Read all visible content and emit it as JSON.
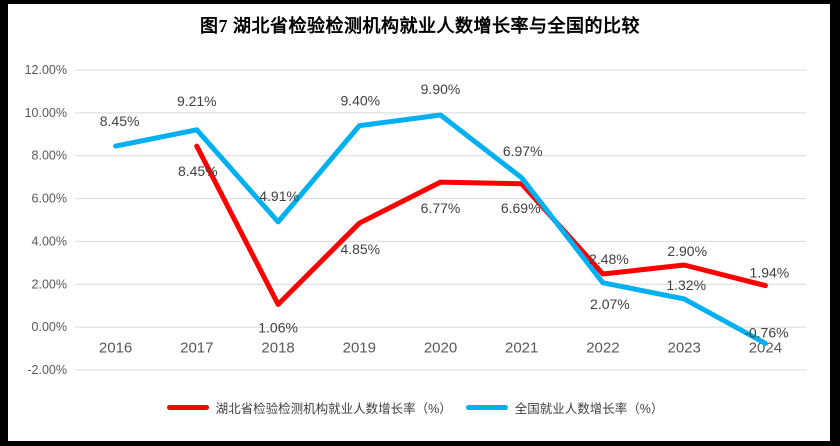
{
  "colors": {
    "frame": "#000000",
    "background": "#FFFFFF",
    "gridline": "#D9D9D9",
    "axis_text": "#595959",
    "label_text": "#404040",
    "title_text": "#000000",
    "hubei_series": "#FE0000",
    "national_series": "#00B0F0"
  },
  "chart_data": {
    "type": "line",
    "title": "图7 湖北省检验检测机构就业人数增长率与全国的比较",
    "categories": [
      "2016",
      "2017",
      "2018",
      "2019",
      "2020",
      "2021",
      "2022",
      "2023",
      "2024"
    ],
    "series": [
      {
        "name": "湖北省检验检测机构就业人数增长率（%）",
        "color": "#FE0000",
        "values": [
          null,
          8.45,
          1.06,
          4.85,
          6.77,
          6.69,
          2.48,
          2.9,
          1.94
        ],
        "labels": [
          null,
          "8.45%",
          "1.06%",
          "4.85%",
          "6.77%",
          "6.69%",
          "2.48%",
          "2.90%",
          "1.94%"
        ],
        "label_offsets": [
          null,
          [
            1,
            25
          ],
          [
            0,
            23
          ],
          [
            1,
            26
          ],
          [
            0,
            26
          ],
          [
            -1,
            24
          ],
          [
            6,
            -15
          ],
          [
            3,
            -14
          ],
          [
            4,
            -13
          ]
        ]
      },
      {
        "name": "全国就业人数增长率（%）",
        "color": "#00B0F0",
        "values": [
          8.45,
          9.21,
          4.91,
          9.4,
          9.9,
          6.97,
          2.07,
          1.32,
          -0.76
        ],
        "labels": [
          "8.45%",
          "9.21%",
          "4.91%",
          "9.40%",
          "9.90%",
          "6.97%",
          "2.07%",
          "1.32%",
          "-0.76%"
        ],
        "label_offsets": [
          [
            4,
            -25
          ],
          [
            0,
            -29
          ],
          [
            1,
            -26
          ],
          [
            1,
            -25
          ],
          [
            0,
            -26
          ],
          [
            1,
            -27
          ],
          [
            7,
            21
          ],
          [
            2,
            -14
          ],
          [
            1,
            -11
          ]
        ]
      }
    ],
    "y_axis": {
      "min": -2,
      "max": 12,
      "step": 2,
      "tick_labels": [
        "12.00%",
        "10.00%",
        "8.00%",
        "6.00%",
        "4.00%",
        "2.00%",
        "0.00%",
        "-2.00%"
      ]
    },
    "x_axis": {
      "tick_labels": [
        "2016",
        "2017",
        "2018",
        "2019",
        "2020",
        "2021",
        "2022",
        "2023",
        "2024"
      ]
    },
    "grid": "horizontal-only",
    "legend_position": "bottom",
    "line_width": 5
  }
}
